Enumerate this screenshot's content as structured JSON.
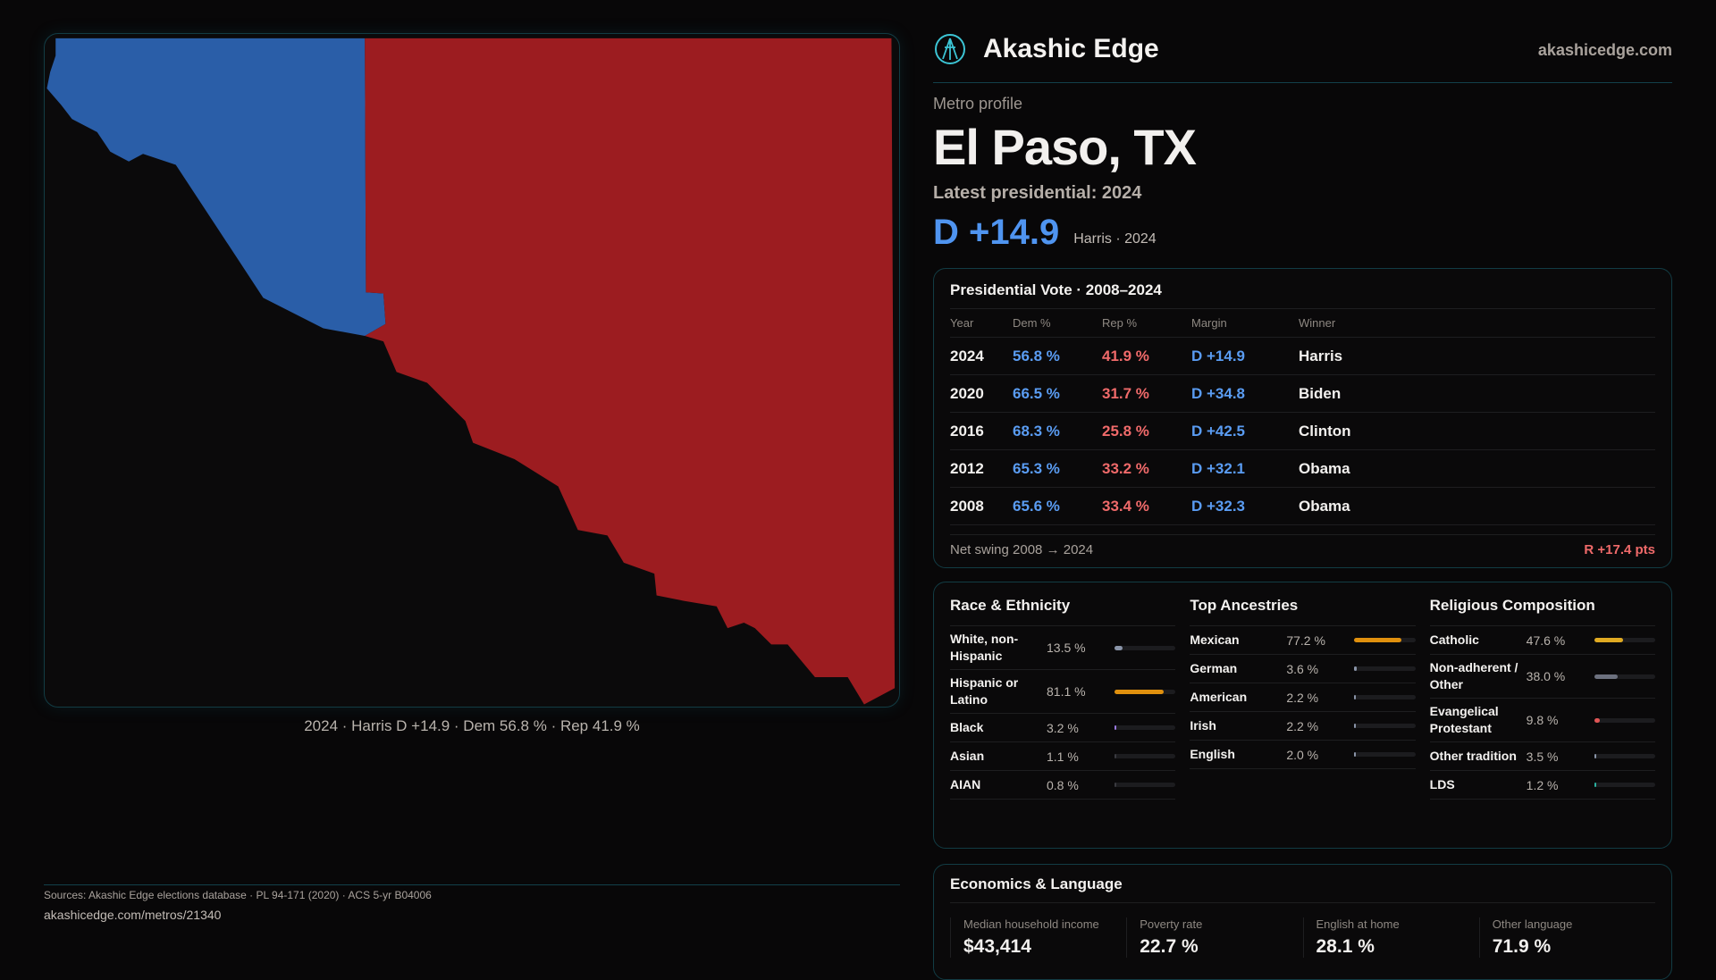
{
  "brand": {
    "name": "Akashic Edge",
    "site": "akashicedge.com"
  },
  "profile": {
    "kicker": "Metro profile",
    "title": "El Paso, TX",
    "latest": "Latest presidential: 2024",
    "margin": "D +14.9",
    "margin_sub": "Harris · 2024"
  },
  "map": {
    "caption": "2024 · Harris D +14.9 · Dem 56.8 % · Rep 41.9 %",
    "colors": {
      "dem": "#2a5ea8",
      "rep": "#9c1c20"
    }
  },
  "vote": {
    "title": "Presidential Vote · 2008–2024",
    "headers": [
      "Year",
      "Dem %",
      "Rep %",
      "Margin",
      "Winner"
    ],
    "rows": [
      [
        "2024",
        "56.8 %",
        "41.9 %",
        "D +14.9",
        "Harris"
      ],
      [
        "2020",
        "66.5 %",
        "31.7 %",
        "D +34.8",
        "Biden"
      ],
      [
        "2016",
        "68.3 %",
        "25.8 %",
        "D +42.5",
        "Clinton"
      ],
      [
        "2012",
        "65.3 %",
        "33.2 %",
        "D +32.1",
        "Obama"
      ],
      [
        "2008",
        "65.6 %",
        "33.4 %",
        "D +32.3",
        "Obama"
      ]
    ],
    "swing_label": "Net swing 2008 → 2024",
    "swing_value": "R +17.4 pts"
  },
  "race": {
    "title": "Race & Ethnicity",
    "items": [
      {
        "label": "White, non-Hispanic",
        "pct": "13.5 %",
        "value": 13.5,
        "color": "#8a94a8"
      },
      {
        "label": "Hispanic or Latino",
        "pct": "81.1 %",
        "value": 81.1,
        "color": "#e0900e"
      },
      {
        "label": "Black",
        "pct": "3.2 %",
        "value": 3.2,
        "color": "#9a7ae0"
      },
      {
        "label": "Asian",
        "pct": "1.1 %",
        "value": 1.1,
        "color": "#3a3a40"
      },
      {
        "label": "AIAN",
        "pct": "0.8 %",
        "value": 0.8,
        "color": "#3a3a40"
      }
    ]
  },
  "ancestry": {
    "title": "Top Ancestries",
    "items": [
      {
        "label": "Mexican",
        "pct": "77.2 %",
        "value": 77.2,
        "color": "#e0900e"
      },
      {
        "label": "German",
        "pct": "3.6 %",
        "value": 3.6,
        "color": "#8a94a8"
      },
      {
        "label": "American",
        "pct": "2.2 %",
        "value": 2.2,
        "color": "#8a94a8"
      },
      {
        "label": "Irish",
        "pct": "2.2 %",
        "value": 2.2,
        "color": "#8a94a8"
      },
      {
        "label": "English",
        "pct": "2.0 %",
        "value": 2.0,
        "color": "#8a94a8"
      }
    ]
  },
  "religion": {
    "title": "Religious Composition",
    "items": [
      {
        "label": "Catholic",
        "pct": "47.6 %",
        "value": 47.6,
        "color": "#e0aa22"
      },
      {
        "label": "Non-adherent / Other",
        "pct": "38.0 %",
        "value": 38.0,
        "color": "#6c707e"
      },
      {
        "label": "Evangelical Protestant",
        "pct": "9.8 %",
        "value": 9.8,
        "color": "#e05555"
      },
      {
        "label": "Other tradition",
        "pct": "3.5 %",
        "value": 3.5,
        "color": "#8a94a8"
      },
      {
        "label": "LDS",
        "pct": "1.2 %",
        "value": 1.2,
        "color": "#2ab0a0"
      }
    ]
  },
  "econ": {
    "title": "Economics & Language",
    "stats": [
      {
        "label": "Median household income",
        "value": "$43,414"
      },
      {
        "label": "Poverty rate",
        "value": "22.7 %"
      },
      {
        "label": "English at home",
        "value": "28.1 %"
      },
      {
        "label": "Other language",
        "value": "71.9 %"
      }
    ]
  },
  "footer": {
    "sources": "Sources: Akashic Edge elections database · PL 94-171 (2020) · ACS 5-yr B04006",
    "url": "akashicedge.com/metros/21340"
  }
}
